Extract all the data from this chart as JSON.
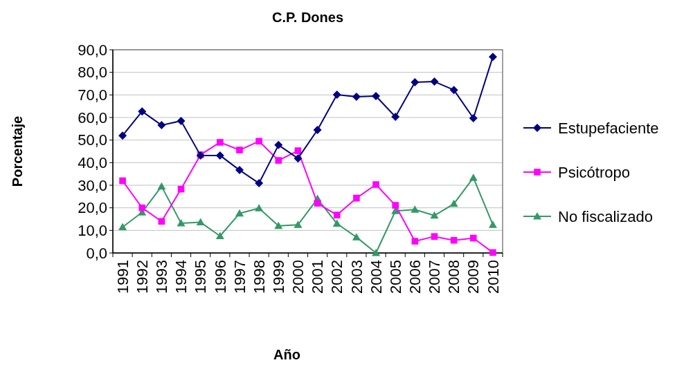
{
  "chart_data": {
    "type": "line",
    "title": "C.P. Dones",
    "xlabel": "Año",
    "ylabel": "Porcentaje",
    "categories": [
      "1991",
      "1992",
      "1993",
      "1994",
      "1995",
      "1996",
      "1997",
      "1998",
      "1999",
      "2000",
      "2001",
      "2002",
      "2003",
      "2004",
      "2005",
      "2006",
      "2007",
      "2008",
      "2009",
      "2010"
    ],
    "series": [
      {
        "name": "Estupefaciente",
        "color": "#000080",
        "marker": "diamond",
        "values": [
          52,
          62.7,
          56.6,
          58.5,
          43.2,
          43.2,
          36.7,
          30.9,
          47.8,
          41.9,
          54.5,
          70.1,
          69.2,
          69.5,
          60.3,
          75.6,
          75.9,
          72.2,
          59.7,
          86.9
        ]
      },
      {
        "name": "Psicótropo",
        "color": "#ff00ff",
        "marker": "square",
        "values": [
          32,
          20,
          14,
          28.3,
          43.5,
          49,
          45.6,
          49.5,
          41,
          45.3,
          22,
          16.8,
          24.3,
          30.3,
          21.1,
          5.2,
          7.3,
          5.6,
          6.6,
          0.2
        ]
      },
      {
        "name": "No fiscalizado",
        "color": "#339966",
        "marker": "triangle",
        "values": [
          11.5,
          18,
          29.5,
          13.2,
          13.6,
          7.5,
          17.5,
          19.8,
          12,
          12.5,
          24,
          13,
          7,
          0,
          18.6,
          19.2,
          16.6,
          21.8,
          33.3,
          12.5
        ]
      }
    ],
    "ylim": [
      0,
      90
    ],
    "yticks": [
      {
        "value": 0,
        "label": "0,0"
      },
      {
        "value": 10,
        "label": "10,0"
      },
      {
        "value": 20,
        "label": "20,0"
      },
      {
        "value": 30,
        "label": "30,0"
      },
      {
        "value": 40,
        "label": "40,0"
      },
      {
        "value": 50,
        "label": "50,0"
      },
      {
        "value": 60,
        "label": "60,0"
      },
      {
        "value": 70,
        "label": "70,0"
      },
      {
        "value": 80,
        "label": "80,0"
      },
      {
        "value": 90,
        "label": "90,0"
      }
    ],
    "grid": "y",
    "legend": "right"
  }
}
